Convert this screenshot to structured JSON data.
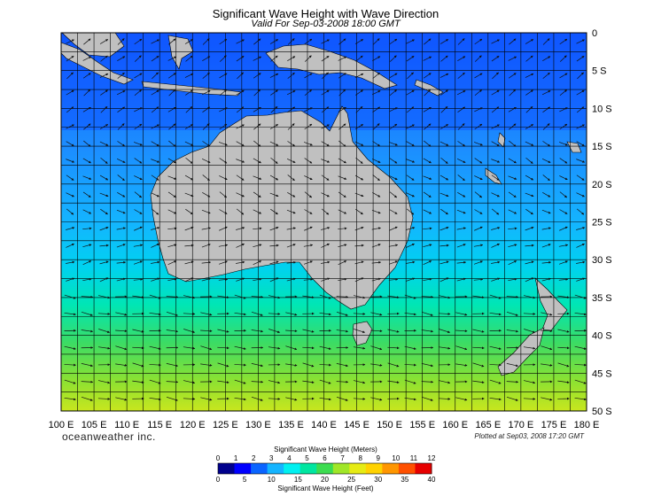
{
  "title": "Significant Wave Height with Wave Direction",
  "subtitle": "Valid For Sep-03-2008 18:00 GMT",
  "brand": "oceanweather inc.",
  "plotted": "Plotted at Sep03, 2008 17:20 GMT",
  "map": {
    "lon_range": [
      100,
      180
    ],
    "lat_range": [
      0,
      -50
    ],
    "lon_ticks": [
      "100 E",
      "105 E",
      "110 E",
      "115 E",
      "120 E",
      "125 E",
      "130 E",
      "135 E",
      "140 E",
      "145 E",
      "150 E",
      "155 E",
      "160 E",
      "165 E",
      "170 E",
      "175 E",
      "180 E"
    ],
    "lat_ticks": [
      "0",
      "5 S",
      "10 S",
      "15 S",
      "20 S",
      "25 S",
      "30 S",
      "35 S",
      "40 S",
      "45 S",
      "50 S"
    ],
    "land_color": "#c0c0c0"
  },
  "colorbar": {
    "title_meters": "Significant Wave Height (Meters)",
    "title_feet": "Significant Wave Height (Feet)",
    "meters_labels": [
      "0",
      "1",
      "2",
      "3",
      "4",
      "5",
      "6",
      "7",
      "8",
      "9",
      "10",
      "11",
      "12"
    ],
    "feet_labels": [
      "0",
      "5",
      "10",
      "15",
      "20",
      "25",
      "30",
      "35",
      "40"
    ],
    "colors": [
      "#00008c",
      "#0000ff",
      "#0a64ff",
      "#14b4ff",
      "#00f0f0",
      "#00e6a0",
      "#3cdc50",
      "#a0e628",
      "#e6eb14",
      "#ffd200",
      "#ff9600",
      "#ff5000",
      "#e60000"
    ]
  }
}
